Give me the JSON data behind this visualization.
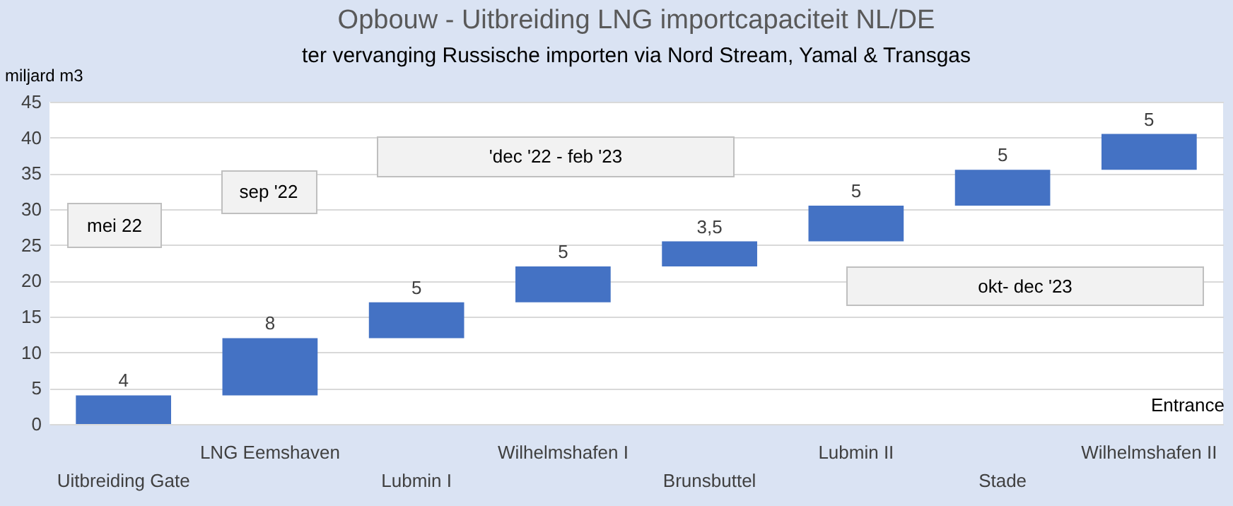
{
  "chart_data": {
    "type": "bar",
    "title": "Opbouw - Uitbreiding LNG importcapaciteit NL/DE",
    "subtitle": "ter vervanging Russische importen via Nord Stream, Yamal & Transgas",
    "ylabel": "miljard m3",
    "categories": [
      "Uitbreiding Gate",
      "LNG Eemshaven",
      "Lubmin I",
      "Wilhelmshafen I",
      "Brunsbuttel",
      "Lubmin II",
      "Stade",
      "Wilhelmshafen II"
    ],
    "values": [
      4,
      8,
      5,
      5,
      3.5,
      5,
      5,
      5
    ],
    "base": [
      0,
      4,
      12,
      17,
      22,
      25.5,
      30.5,
      35.5
    ],
    "value_labels": [
      "4",
      "8",
      "5",
      "5",
      "3,5",
      "5",
      "5",
      "5"
    ],
    "color": "#4472c4",
    "ylim": [
      0,
      45
    ],
    "yticks": [
      0,
      5,
      10,
      15,
      20,
      25,
      30,
      35,
      40,
      45
    ],
    "grid": "y",
    "annotations": [
      "mei 22",
      "sep '22",
      "'dec '22 - feb '23",
      "okt- dec '23",
      "Entrance"
    ]
  }
}
